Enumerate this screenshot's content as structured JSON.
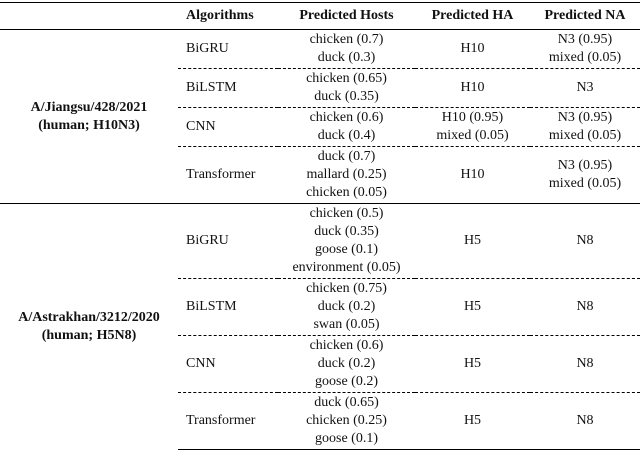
{
  "table": {
    "header": [
      "Algorithms",
      "Predicted Hosts",
      "Predicted HA",
      "Predicted NA"
    ],
    "groups": [
      {
        "strain": [
          "A/Jiangsu/428/2021",
          "(human; H10N3)"
        ],
        "rows": [
          {
            "algorithm": "BiGRU",
            "hosts": [
              "chicken (0.7)",
              "duck (0.3)"
            ],
            "ha": [
              "H10"
            ],
            "na": [
              "N3 (0.95)",
              "mixed (0.05)"
            ]
          },
          {
            "algorithm": "BiLSTM",
            "hosts": [
              "chicken (0.65)",
              "duck (0.35)"
            ],
            "ha": [
              "H10"
            ],
            "na": [
              "N3"
            ]
          },
          {
            "algorithm": "CNN",
            "hosts": [
              "chicken (0.6)",
              "duck (0.4)"
            ],
            "ha": [
              "H10 (0.95)",
              "mixed (0.05)"
            ],
            "na": [
              "N3 (0.95)",
              "mixed (0.05)"
            ]
          },
          {
            "algorithm": "Transformer",
            "hosts": [
              "duck (0.7)",
              "mallard (0.25)",
              "chicken (0.05)"
            ],
            "ha": [
              "H10"
            ],
            "na": [
              "N3 (0.95)",
              "mixed (0.05)"
            ]
          }
        ]
      },
      {
        "strain": [
          "A/Astrakhan/3212/2020",
          "(human; H5N8)"
        ],
        "rows": [
          {
            "algorithm": "BiGRU",
            "hosts": [
              "chicken (0.5)",
              "duck (0.35)",
              "goose (0.1)",
              "environment (0.05)"
            ],
            "ha": [
              "H5"
            ],
            "na": [
              "N8"
            ]
          },
          {
            "algorithm": "BiLSTM",
            "hosts": [
              "chicken (0.75)",
              "duck (0.2)",
              "swan (0.05)"
            ],
            "ha": [
              "H5"
            ],
            "na": [
              "N8"
            ]
          },
          {
            "algorithm": "CNN",
            "hosts": [
              "chicken (0.6)",
              "duck (0.2)",
              "goose (0.2)"
            ],
            "ha": [
              "H5"
            ],
            "na": [
              "N8"
            ]
          },
          {
            "algorithm": "Transformer",
            "hosts": [
              "duck (0.65)",
              "chicken (0.25)",
              "goose (0.1)"
            ],
            "ha": [
              "H5"
            ],
            "na": [
              "N8"
            ]
          }
        ]
      }
    ]
  }
}
